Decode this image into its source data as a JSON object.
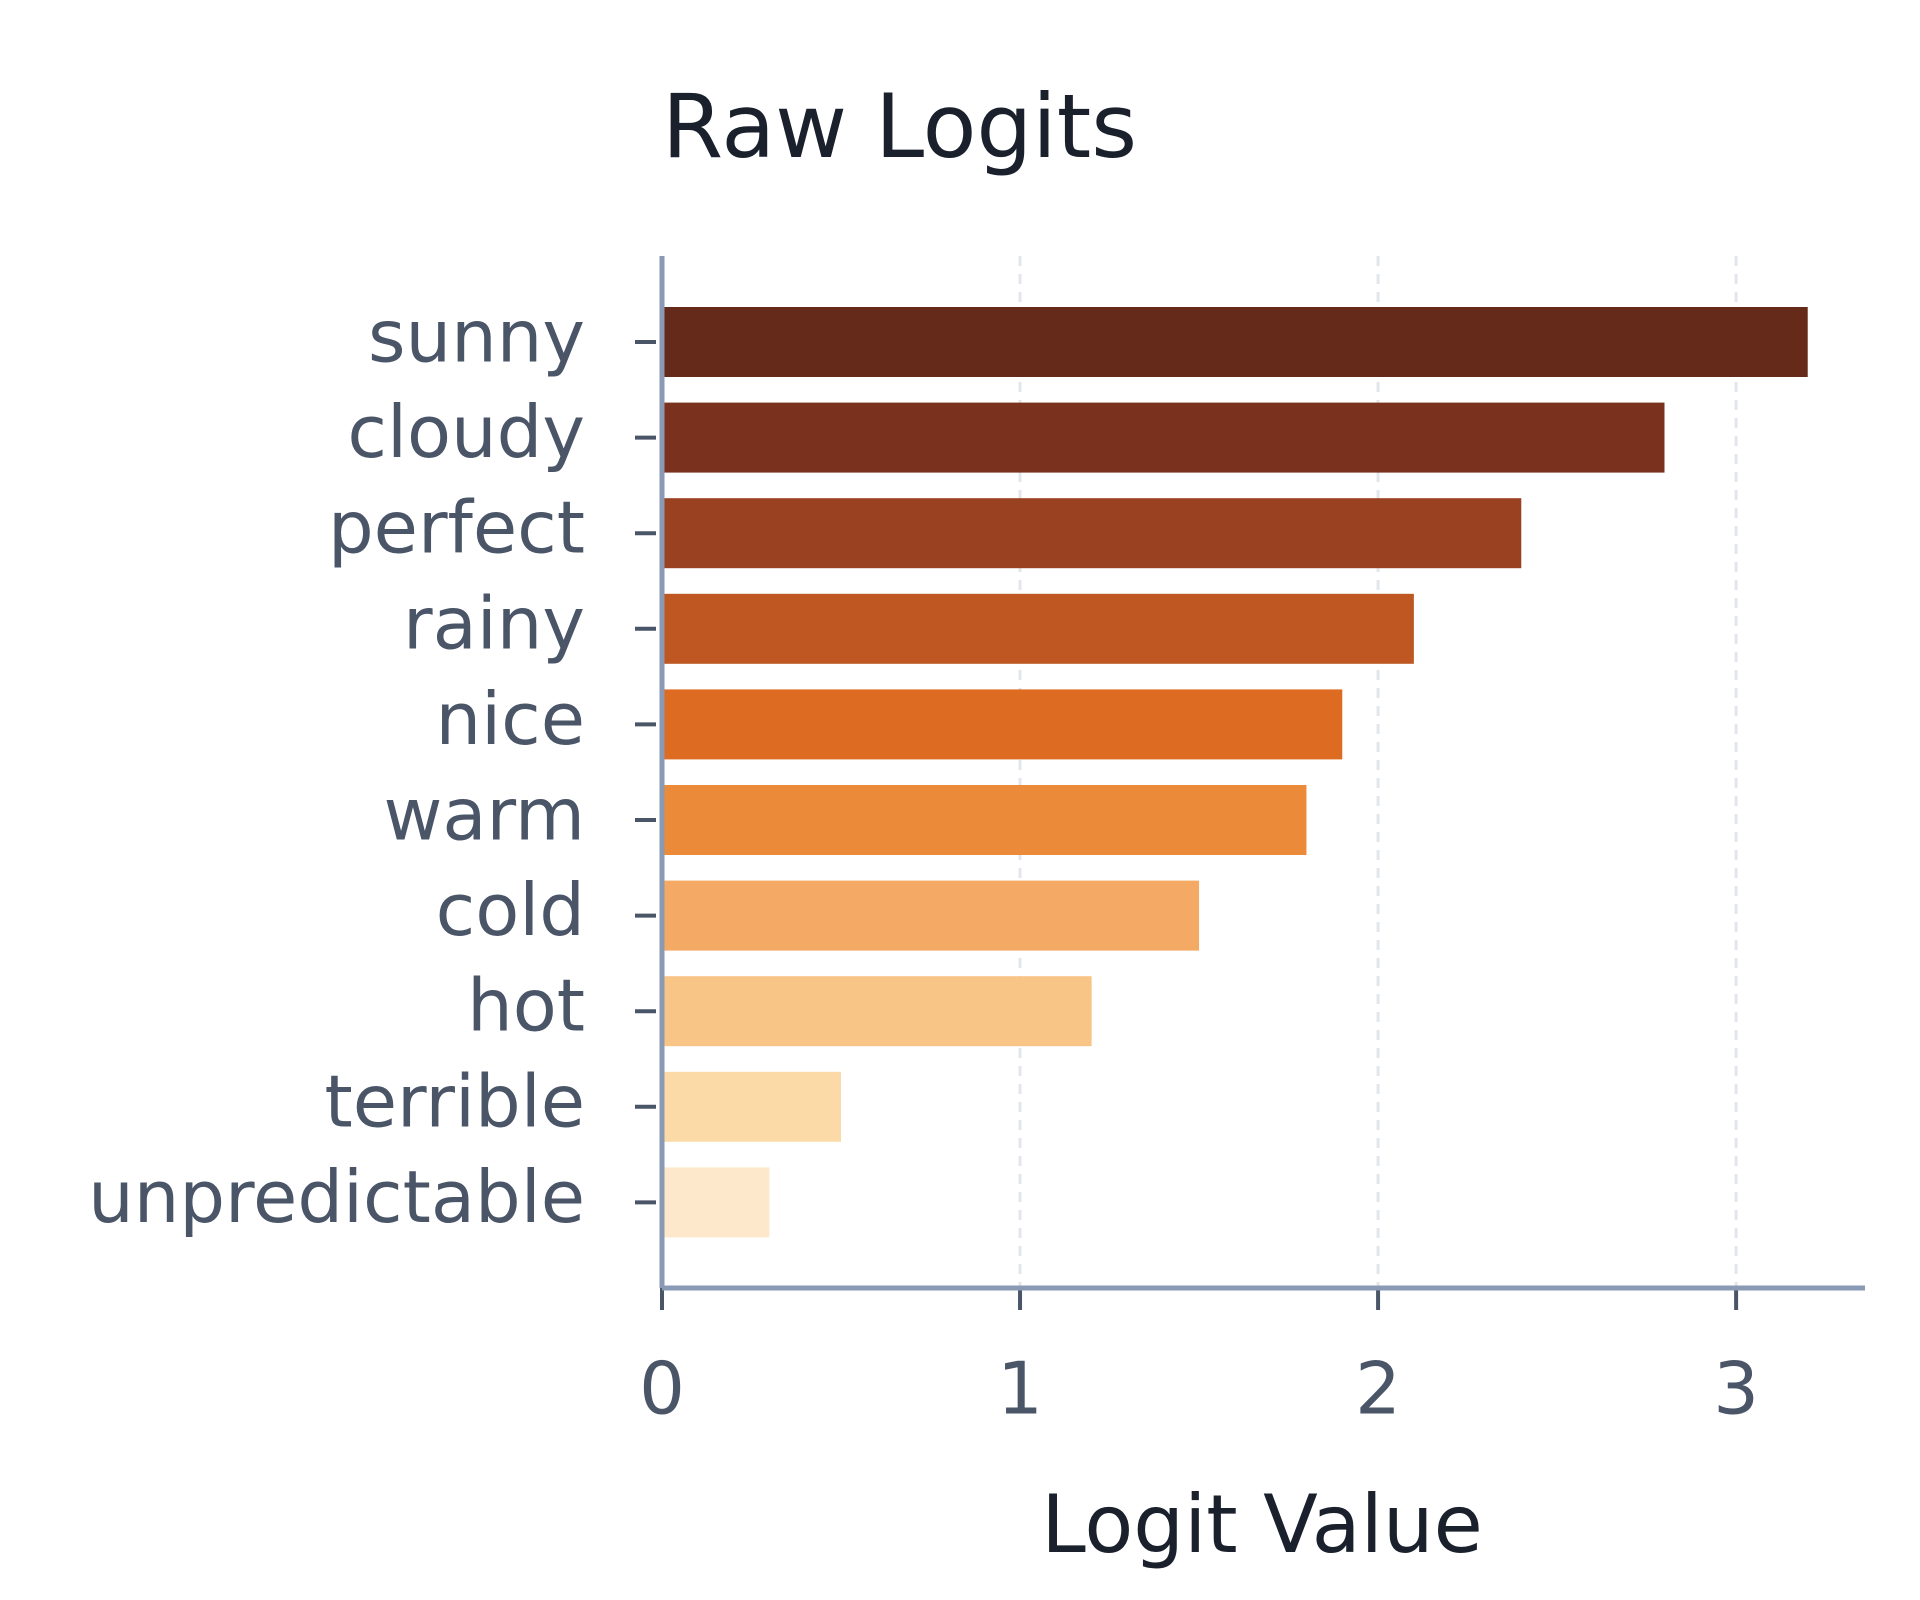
{
  "chart_data": {
    "type": "bar",
    "orientation": "horizontal",
    "title": "Raw Logits",
    "x_label": "Logit Value",
    "categories": [
      "sunny",
      "cloudy",
      "perfect",
      "rainy",
      "nice",
      "warm",
      "cold",
      "hot",
      "terrible",
      "unpredictable"
    ],
    "values": [
      3.2,
      2.8,
      2.4,
      2.1,
      1.9,
      1.8,
      1.5,
      1.2,
      0.5,
      0.3
    ],
    "colors": [
      "#652a1a",
      "#7a321f",
      "#9a4121",
      "#bf5723",
      "#de6b22",
      "#eb8b3a",
      "#f4aa64",
      "#f8c587",
      "#fcdaa8",
      "#fde8cc"
    ],
    "xlim": [
      0,
      3.36
    ],
    "xticks": [
      0,
      1,
      2,
      3
    ],
    "grid": true
  }
}
